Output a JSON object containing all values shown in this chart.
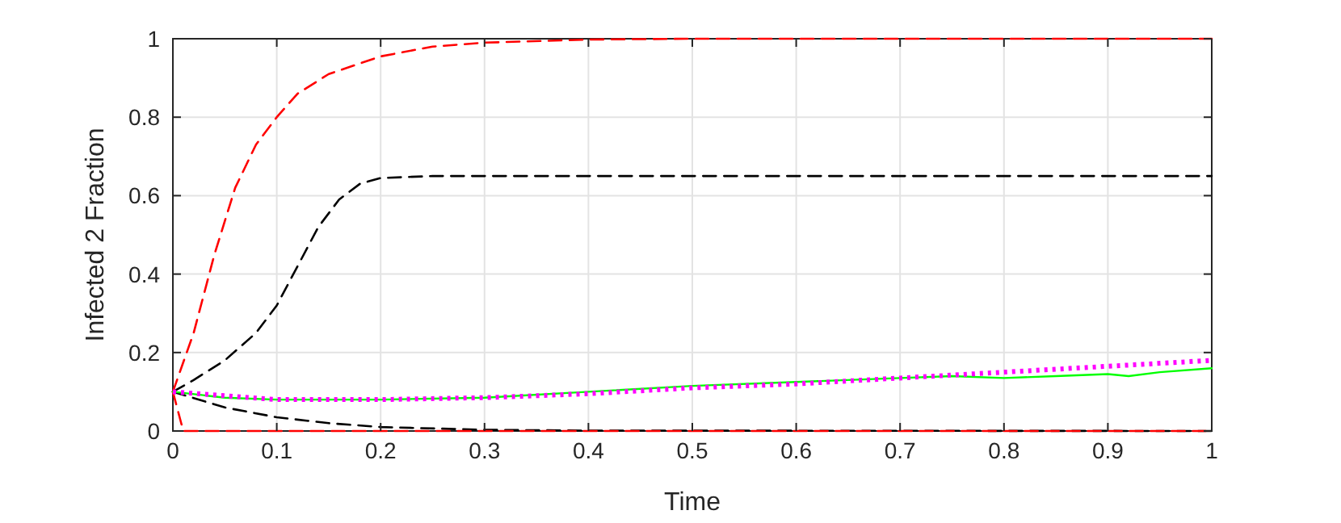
{
  "chart_data": {
    "type": "line",
    "xlabel": "Time",
    "ylabel": "Infected 2 Fraction",
    "xlim": [
      0,
      1
    ],
    "ylim": [
      0,
      1
    ],
    "xticks": [
      0,
      0.1,
      0.2,
      0.3,
      0.4,
      0.5,
      0.6,
      0.7,
      0.8,
      0.9,
      1
    ],
    "yticks": [
      0,
      0.2,
      0.4,
      0.6,
      0.8,
      1
    ],
    "grid": true,
    "series": [
      {
        "color": "#ff0000",
        "line_style": "dashed",
        "x": [
          0,
          0.02,
          0.04,
          0.06,
          0.08,
          0.1,
          0.12,
          0.15,
          0.2,
          0.25,
          0.3,
          0.4,
          0.5,
          1
        ],
        "values": [
          0.1,
          0.25,
          0.45,
          0.62,
          0.73,
          0.8,
          0.86,
          0.91,
          0.955,
          0.98,
          0.99,
          0.998,
          1,
          1
        ]
      },
      {
        "color": "#000000",
        "line_style": "dashed",
        "x": [
          0,
          0.02,
          0.05,
          0.08,
          0.1,
          0.12,
          0.14,
          0.16,
          0.18,
          0.2,
          0.25,
          1
        ],
        "values": [
          0.1,
          0.13,
          0.18,
          0.25,
          0.32,
          0.42,
          0.52,
          0.59,
          0.63,
          0.645,
          0.65,
          0.65
        ]
      },
      {
        "color": "#000000",
        "line_style": "dashed",
        "x": [
          0,
          0.05,
          0.1,
          0.15,
          0.2,
          0.3,
          0.4,
          1
        ],
        "values": [
          0.1,
          0.06,
          0.035,
          0.02,
          0.01,
          0.003,
          0.001,
          0
        ]
      },
      {
        "color": "#ff0000",
        "line_style": "dashed",
        "x": [
          0,
          0.01,
          1
        ],
        "values": [
          0.1,
          0,
          0
        ]
      },
      {
        "color": "#00ff00",
        "line_style": "solid",
        "x": [
          0,
          0.05,
          0.1,
          0.2,
          0.3,
          0.4,
          0.5,
          0.6,
          0.7,
          0.75,
          0.8,
          0.85,
          0.9,
          0.92,
          0.95,
          1
        ],
        "values": [
          0.1,
          0.085,
          0.08,
          0.08,
          0.085,
          0.1,
          0.115,
          0.125,
          0.135,
          0.14,
          0.135,
          0.14,
          0.145,
          0.14,
          0.15,
          0.16
        ]
      },
      {
        "color": "#ff00ff",
        "line_style": "dotted",
        "x": [
          0,
          0.1,
          0.2,
          0.3,
          0.4,
          0.5,
          0.6,
          0.7,
          0.8,
          0.9,
          1
        ],
        "values": [
          0.1,
          0.08,
          0.08,
          0.085,
          0.095,
          0.11,
          0.12,
          0.135,
          0.15,
          0.165,
          0.18
        ]
      }
    ]
  }
}
